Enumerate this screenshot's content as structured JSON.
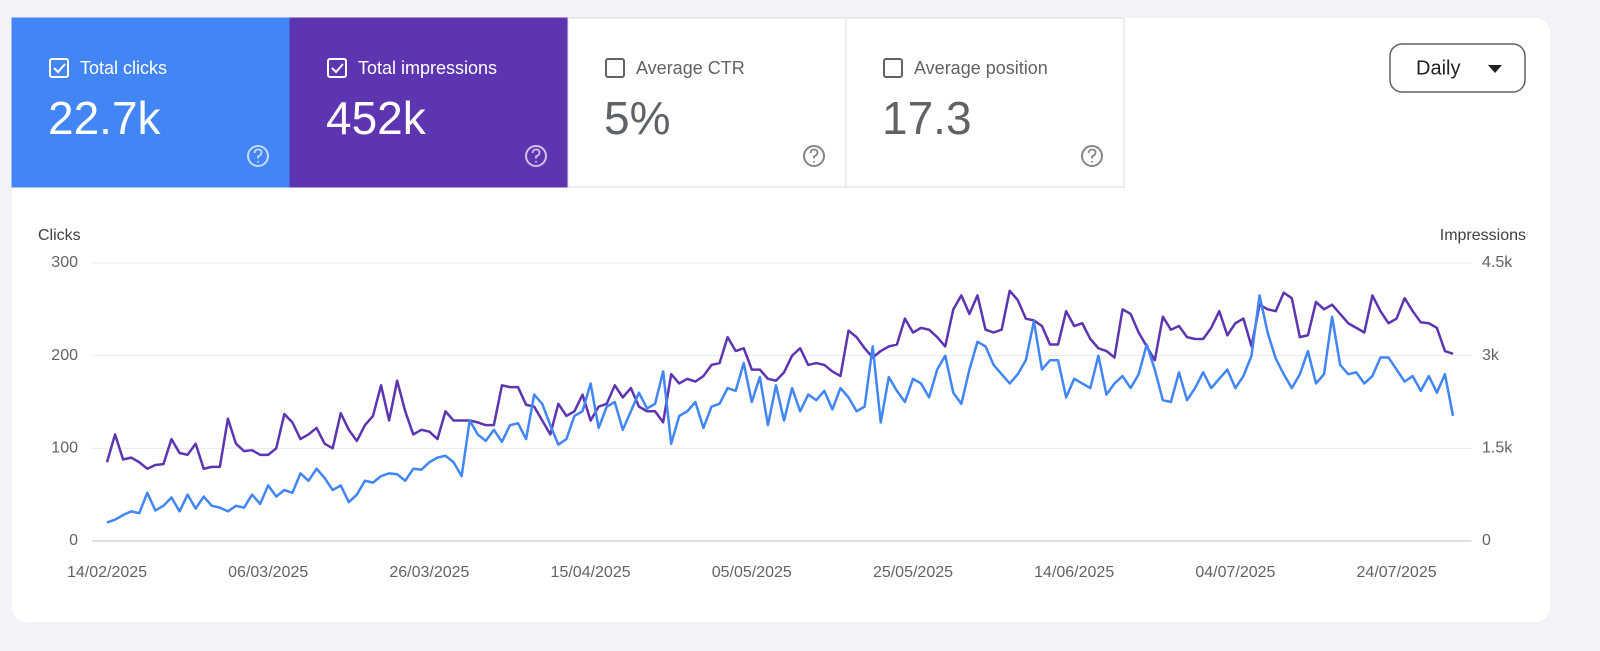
{
  "cards": [
    {
      "label": "Total clicks",
      "value": "22.7k",
      "checked": true,
      "color": "#4285f4"
    },
    {
      "label": "Total impressions",
      "value": "452k",
      "checked": true,
      "color": "#5e35b1"
    },
    {
      "label": "Average CTR",
      "value": "5%",
      "checked": false,
      "color": "#ffffff"
    },
    {
      "label": "Average position",
      "value": "17.3",
      "checked": false,
      "color": "#ffffff"
    }
  ],
  "dropdown": "Daily",
  "chart_data": {
    "type": "line",
    "categories": [
      "14/02/2025",
      null,
      null,
      null,
      null,
      null,
      null,
      null,
      null,
      null,
      null,
      null,
      null,
      null,
      null,
      null,
      null,
      null,
      null,
      null,
      "06/03/2025",
      null,
      null,
      null,
      null,
      null,
      null,
      null,
      null,
      null,
      null,
      null,
      null,
      null,
      null,
      null,
      null,
      null,
      null,
      null,
      "26/03/2025",
      null,
      null,
      null,
      null,
      null,
      null,
      null,
      null,
      null,
      null,
      null,
      null,
      null,
      null,
      null,
      null,
      null,
      null,
      null,
      "15/04/2025",
      null,
      null,
      null,
      null,
      null,
      null,
      null,
      null,
      null,
      null,
      null,
      null,
      null,
      null,
      null,
      null,
      null,
      null,
      null,
      "05/05/2025",
      null,
      null,
      null,
      null,
      null,
      null,
      null,
      null,
      null,
      null,
      null,
      null,
      null,
      null,
      null,
      null,
      null,
      null,
      null,
      "25/05/2025",
      null,
      null,
      null,
      null,
      null,
      null,
      null,
      null,
      null,
      null,
      null,
      null,
      null,
      null,
      null,
      null,
      null,
      null,
      null,
      "14/06/2025",
      null,
      null,
      null,
      null,
      null,
      null,
      null,
      null,
      null,
      null,
      null,
      null,
      null,
      null,
      null,
      null,
      null,
      null,
      null,
      "04/07/2025",
      null,
      null,
      null,
      null,
      null,
      null,
      null,
      null,
      null,
      null,
      null,
      null,
      null,
      null,
      null,
      null,
      null,
      null,
      null,
      "24/07/2025",
      null,
      null,
      null,
      null,
      null,
      null,
      null
    ],
    "series": [
      {
        "name": "Clicks",
        "color": "#4285f4",
        "values": [
          20,
          23,
          28,
          32,
          30,
          52,
          33,
          38,
          47,
          32,
          50,
          35,
          48,
          38,
          36,
          32,
          38,
          36,
          50,
          40,
          60,
          48,
          55,
          52,
          73,
          65,
          78,
          68,
          55,
          60,
          42,
          50,
          65,
          63,
          70,
          73,
          72,
          65,
          78,
          77,
          85,
          90,
          92,
          85,
          70,
          130,
          115,
          108,
          120,
          107,
          125,
          127,
          110,
          158,
          148,
          125,
          104,
          110,
          135,
          140,
          170,
          122,
          145,
          150,
          120,
          140,
          160,
          143,
          148,
          183,
          105,
          135,
          140,
          150,
          122,
          145,
          148,
          165,
          162,
          192,
          150,
          177,
          125,
          168,
          130,
          165,
          140,
          158,
          152,
          162,
          142,
          165,
          155,
          140,
          145,
          210,
          128,
          177,
          162,
          150,
          175,
          170,
          155,
          185,
          200,
          160,
          148,
          185,
          215,
          210,
          190,
          180,
          170,
          180,
          195,
          237,
          185,
          195,
          195,
          155,
          175,
          170,
          165,
          200,
          158,
          170,
          178,
          165,
          180,
          212,
          185,
          152,
          150,
          182,
          152,
          165,
          182,
          165,
          175,
          185,
          165,
          178,
          200,
          265,
          225,
          197,
          180,
          165,
          180,
          205,
          170,
          180,
          242,
          190,
          180,
          182,
          170,
          178,
          198,
          198,
          185,
          172,
          178,
          162,
          178,
          160,
          180,
          135
        ]
      },
      {
        "name": "Impressions",
        "color": "#5e35b1",
        "axis": "y2",
        "values": [
          1275,
          1725,
          1320,
          1350,
          1275,
          1170,
          1230,
          1245,
          1650,
          1425,
          1395,
          1575,
          1170,
          1200,
          1200,
          1980,
          1575,
          1455,
          1470,
          1395,
          1395,
          1500,
          2055,
          1920,
          1650,
          1725,
          1830,
          1575,
          1500,
          2070,
          1800,
          1620,
          1875,
          2025,
          2520,
          1950,
          2595,
          2100,
          1725,
          1800,
          1770,
          1650,
          2100,
          1950,
          1950,
          1950,
          1920,
          1875,
          1875,
          2520,
          2490,
          2490,
          2205,
          2175,
          1950,
          1725,
          2220,
          2025,
          2100,
          2370,
          1950,
          2175,
          2220,
          2520,
          2325,
          2475,
          2175,
          2100,
          2100,
          1920,
          2700,
          2550,
          2625,
          2580,
          2670,
          2850,
          2880,
          3300,
          3075,
          3120,
          2775,
          2775,
          2625,
          2595,
          2730,
          3000,
          3120,
          2850,
          2880,
          2850,
          2745,
          2670,
          3405,
          3300,
          3120,
          2970,
          3075,
          3150,
          3180,
          3600,
          3375,
          3450,
          3420,
          3300,
          3150,
          3750,
          3975,
          3675,
          3975,
          3420,
          3375,
          3420,
          4050,
          3900,
          3600,
          3570,
          3480,
          3180,
          3180,
          3720,
          3480,
          3525,
          3270,
          3120,
          3075,
          2970,
          3750,
          3675,
          3375,
          3150,
          2925,
          3630,
          3420,
          3480,
          3300,
          3270,
          3270,
          3450,
          3720,
          3330,
          3525,
          3600,
          3150,
          3825,
          3750,
          3720,
          4020,
          3930,
          3300,
          3330,
          3870,
          3750,
          3825,
          3675,
          3525,
          3450,
          3375,
          3975,
          3720,
          3525,
          3600,
          3930,
          3720,
          3540,
          3525,
          3450,
          3075,
          3030
        ]
      }
    ],
    "ylim": [
      0,
      300
    ],
    "yticks": [
      0,
      100,
      200,
      300
    ],
    "y2lim": [
      0,
      4500
    ],
    "y2ticks": [
      0,
      {
        "value": 1500,
        "label": "1.5k"
      },
      {
        "value": 3000,
        "label": "3k"
      },
      {
        "value": 4500,
        "label": "4.5k"
      }
    ],
    "grid": true
  }
}
